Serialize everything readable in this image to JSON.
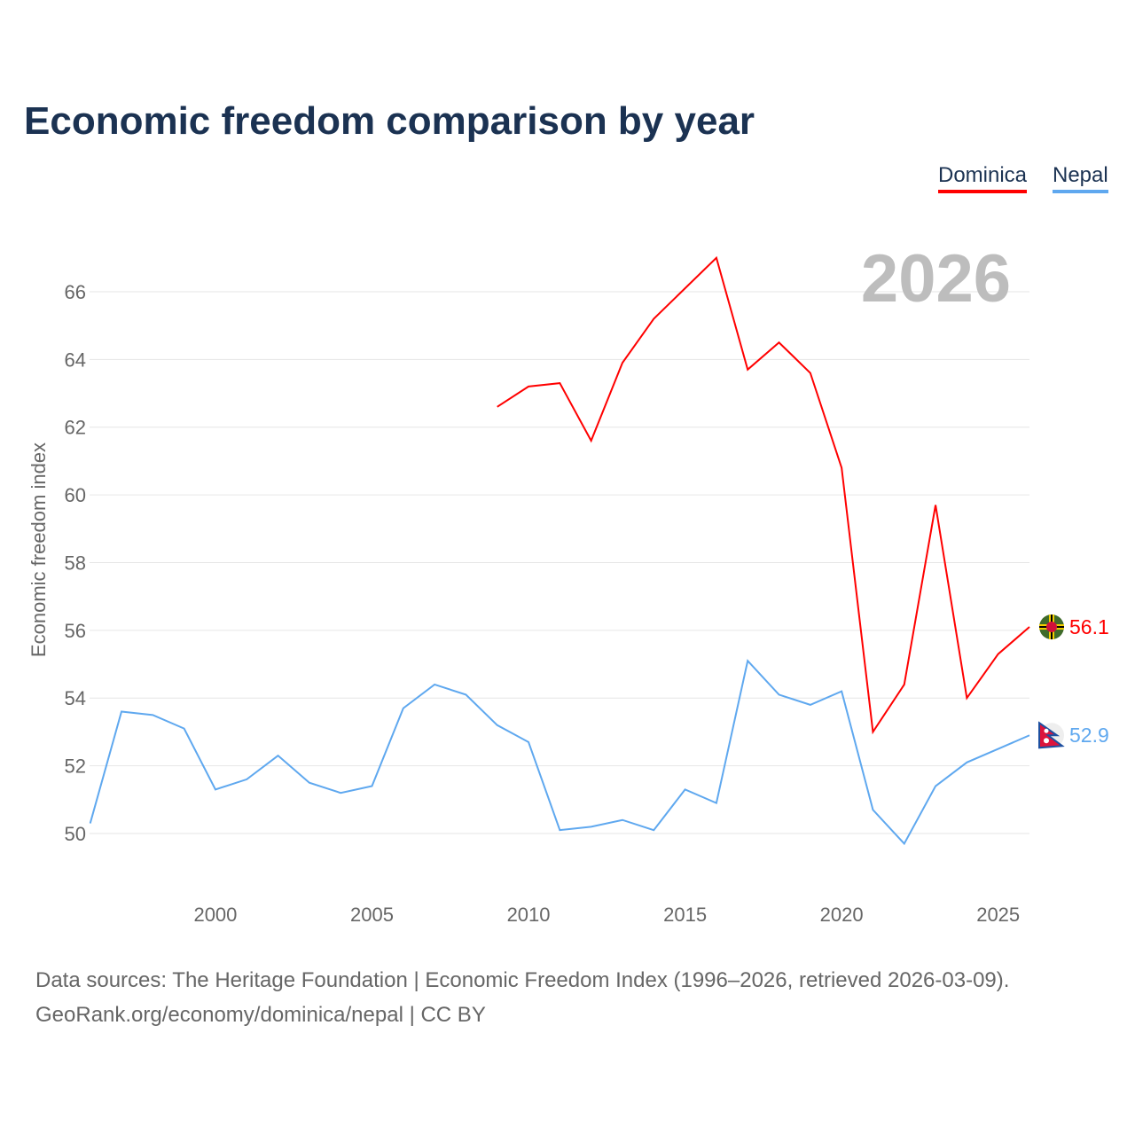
{
  "title": "Economic freedom comparison by year",
  "year_watermark": "2026",
  "footer": {
    "line1": "Data sources: The Heritage Foundation | Economic Freedom Index (1996–2026, retrieved 2026-03-09).",
    "line2": "GeoRank.org/economy/dominica/nepal | CC BY"
  },
  "chart_data": {
    "type": "line",
    "title": "Economic freedom comparison by year",
    "xlabel": "",
    "ylabel": "Economic freedom index",
    "xlim": [
      1996,
      2026
    ],
    "ylim": [
      48.6,
      67.9
    ],
    "xticks": [
      2000,
      2005,
      2010,
      2015,
      2020,
      2025
    ],
    "yticks": [
      50,
      52,
      54,
      56,
      58,
      60,
      62,
      64,
      66
    ],
    "grid": true,
    "legend_position": "top-right",
    "series": [
      {
        "name": "Dominica",
        "color": "#ff0000",
        "flag": "dominica-flag-icon",
        "end_label": "56.1",
        "x": [
          2009,
          2010,
          2011,
          2012,
          2013,
          2014,
          2015,
          2016,
          2017,
          2018,
          2019,
          2020,
          2021,
          2022,
          2023,
          2024,
          2025,
          2026
        ],
        "values": [
          62.6,
          63.2,
          63.3,
          61.6,
          63.9,
          65.2,
          66.1,
          67.0,
          63.7,
          64.5,
          63.6,
          60.8,
          53.0,
          54.4,
          59.7,
          54.0,
          55.3,
          56.1
        ]
      },
      {
        "name": "Nepal",
        "color": "#5fa8ef",
        "flag": "nepal-flag-icon",
        "end_label": "52.9",
        "x": [
          1996,
          1997,
          1998,
          1999,
          2000,
          2001,
          2002,
          2003,
          2004,
          2005,
          2006,
          2007,
          2008,
          2009,
          2010,
          2011,
          2012,
          2013,
          2014,
          2015,
          2016,
          2017,
          2018,
          2019,
          2020,
          2021,
          2022,
          2023,
          2024,
          2025,
          2026
        ],
        "values": [
          50.3,
          53.6,
          53.5,
          53.1,
          51.3,
          51.6,
          52.3,
          51.5,
          51.2,
          51.4,
          53.7,
          54.4,
          54.1,
          53.2,
          52.7,
          50.1,
          50.2,
          50.4,
          50.1,
          51.3,
          50.9,
          55.1,
          54.1,
          53.8,
          54.2,
          50.7,
          49.7,
          51.4,
          52.1,
          52.5,
          52.9
        ]
      }
    ]
  }
}
